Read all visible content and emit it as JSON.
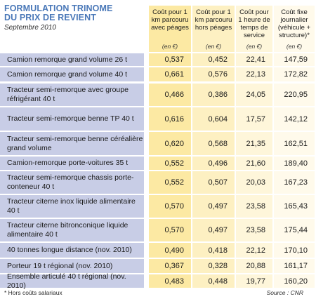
{
  "title_line1": "FORMULATION TRINOME",
  "title_line2": "DU PRIX DE REVIENT",
  "subtitle": "Septembre 2010",
  "columns": [
    {
      "header": "Coût pour 1 km parcouru avec péages",
      "unit": "(en €)"
    },
    {
      "header": "Coût pour 1 km parcouru hors péages",
      "unit": "(en €)"
    },
    {
      "header": "Coût pour 1 heure de temps de service",
      "unit": "(en €)"
    },
    {
      "header": "Coût fixe journalier (véhicule + structure)*",
      "unit": "(en €)"
    }
  ],
  "rows": [
    {
      "label": "Camion remorque grand volume 26 t",
      "values": [
        "0,537",
        "0,452",
        "22,41",
        "147,59"
      ]
    },
    {
      "label": "Camion remorque grand volume 40 t",
      "values": [
        "0,661",
        "0,576",
        "22,13",
        "172,82"
      ]
    },
    {
      "label": "Tracteur semi-remorque avec groupe réfrigérant 40 t",
      "values": [
        "0,466",
        "0,386",
        "24,05",
        "220,95"
      ]
    },
    {
      "label": "Tracteur semi-remorque benne TP 40 t",
      "values": [
        "0,616",
        "0,604",
        "17,57",
        "142,12"
      ]
    },
    {
      "label": "Tracteur semi-remorque benne céréalière grand volume",
      "values": [
        "0,620",
        "0,568",
        "21,35",
        "162,51"
      ]
    },
    {
      "label": "Camion-remorque porte-voitures 35 t",
      "values": [
        "0,552",
        "0,496",
        "21,60",
        "189,40"
      ]
    },
    {
      "label": "Tracteur semi-remorque chassis porte-conteneur 40 t",
      "values": [
        "0,552",
        "0,507",
        "20,03",
        "167,23"
      ]
    },
    {
      "label": "Tracteur citerne inox liquide alimentaire 40 t",
      "values": [
        "0,570",
        "0,497",
        "23,58",
        "165,43"
      ]
    },
    {
      "label": "Tracteur citerne bitronconique liquide alimentaire 40 t",
      "values": [
        "0,570",
        "0,497",
        "23,58",
        "175,44"
      ]
    },
    {
      "label": "40 tonnes longue distance (nov. 2010)",
      "values": [
        "0,490",
        "0,418",
        "22,12",
        "170,10"
      ]
    },
    {
      "label": "Porteur 19 t régional (nov. 2010)",
      "values": [
        "0,367",
        "0,328",
        "20,88",
        "161,17"
      ]
    },
    {
      "label": "Ensemble articulé 40 t régional (nov. 2010)",
      "values": [
        "0,483",
        "0,448",
        "19,77",
        "160,20"
      ]
    }
  ],
  "footnote": "* Hors coûts salariaux",
  "source": "Source : CNR",
  "colors": {
    "title": "#4a78b8",
    "label_bg": "#c8cde6",
    "cell_bg_a": "#fce9a3",
    "cell_bg_b": "#fdf0c2",
    "cell_bg_c": "#fef6da",
    "cell_bg_d": "#fffaeb"
  }
}
